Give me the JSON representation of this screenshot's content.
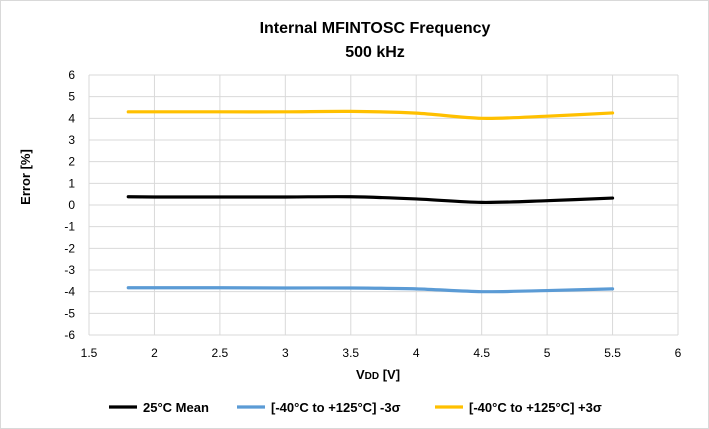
{
  "chart_data": {
    "type": "line",
    "title": "Internal MFINTOSC Frequency",
    "subtitle": "500 kHz",
    "xlabel_main": "V",
    "xlabel_sub": "DD",
    "xlabel_unit": " [V]",
    "ylabel": "Error [%]",
    "xlim": [
      1.5,
      6
    ],
    "ylim": [
      -6,
      6
    ],
    "xticks": [
      "1.5",
      "2",
      "2.5",
      "3",
      "3.5",
      "4",
      "4.5",
      "5",
      "5.5",
      "6"
    ],
    "yticks": [
      "6",
      "5",
      "4",
      "3",
      "2",
      "1",
      "0",
      "-1",
      "-2",
      "-3",
      "-4",
      "-5",
      "-6"
    ],
    "grid": true,
    "legend_position": "bottom",
    "x": [
      1.8,
      2.0,
      2.5,
      3.0,
      3.5,
      4.0,
      4.5,
      5.0,
      5.5
    ],
    "series": [
      {
        "name": "25°C Mean",
        "color": "#000000",
        "values": [
          0.38,
          0.37,
          0.37,
          0.37,
          0.38,
          0.28,
          0.12,
          0.2,
          0.32
        ]
      },
      {
        "name": "[-40°C to +125°C]  -3σ",
        "color": "#5b9bd5",
        "values": [
          -3.82,
          -3.82,
          -3.82,
          -3.83,
          -3.83,
          -3.87,
          -4.0,
          -3.95,
          -3.87
        ]
      },
      {
        "name": "[-40°C to +125°C] +3σ",
        "color": "#ffc000",
        "values": [
          4.3,
          4.3,
          4.3,
          4.3,
          4.32,
          4.24,
          4.0,
          4.1,
          4.25
        ]
      }
    ]
  }
}
